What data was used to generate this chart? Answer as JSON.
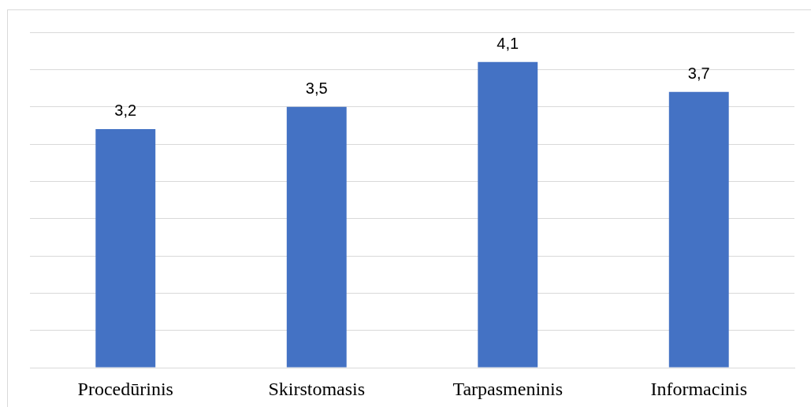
{
  "chart_data": {
    "type": "bar",
    "categories": [
      "Procedūrinis",
      "Skirstomasis",
      "Tarpasmeninis",
      "Informacinis"
    ],
    "values": [
      3.2,
      3.5,
      4.1,
      3.7
    ],
    "color": "#4472c4",
    "value_labels": [
      "3,2",
      "3,5",
      "4,1",
      "3,7"
    ],
    "ylim": [
      0,
      4.5
    ],
    "yticks": [
      0,
      0.5,
      1,
      1.5,
      2,
      2.5,
      3,
      3.5,
      4,
      4.5
    ],
    "tick_labels": "x",
    "grid": "y"
  }
}
